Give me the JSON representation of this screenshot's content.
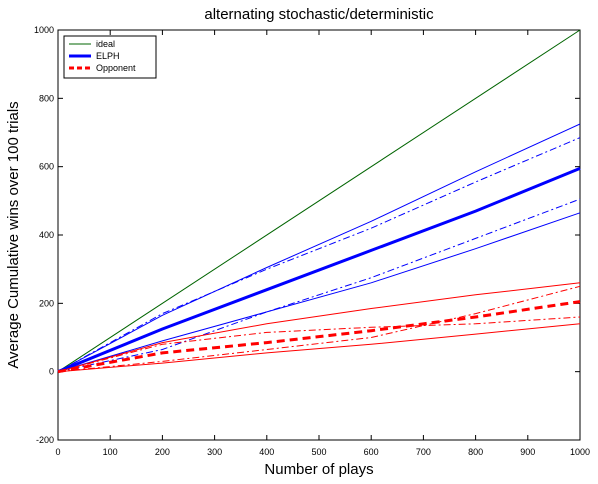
{
  "chart_data": {
    "type": "line",
    "title": "alternating stochastic/deterministic",
    "xlabel": "Number of plays",
    "ylabel": "Average Cumulative wins over 100 trials",
    "xlim": [
      0,
      1000
    ],
    "ylim": [
      -200,
      1000
    ],
    "xticks": [
      "0",
      "100",
      "200",
      "300",
      "400",
      "500",
      "600",
      "700",
      "800",
      "900",
      "1000"
    ],
    "yticks": [
      "-200",
      "0",
      "200",
      "400",
      "600",
      "800",
      "1000"
    ],
    "legend_position": "top-left",
    "grid": false,
    "colors": {
      "ideal": "#006400",
      "elph": "#0000ff",
      "opponent": "#ff0000"
    },
    "legend": [
      {
        "key": "ideal",
        "label": "ideal",
        "style": "solid-thin"
      },
      {
        "key": "elph",
        "label": "ELPH",
        "style": "solid-thick"
      },
      {
        "key": "opponent",
        "label": "Opponent",
        "style": "dashed-thick"
      }
    ],
    "series": [
      {
        "name": "ideal",
        "color_key": "ideal",
        "style": "solid-thin",
        "x": [
          0,
          1000
        ],
        "y": [
          0,
          1000
        ]
      },
      {
        "name": "ELPH",
        "color_key": "elph",
        "style": "solid-thick",
        "x": [
          0,
          200,
          400,
          600,
          800,
          1000
        ],
        "y": [
          0,
          125,
          240,
          355,
          470,
          595
        ]
      },
      {
        "color_key": "elph",
        "style": "solid-thin",
        "x": [
          0,
          200,
          400,
          600,
          800,
          1000
        ],
        "y": [
          0,
          165,
          305,
          440,
          585,
          725
        ]
      },
      {
        "color_key": "elph",
        "style": "solid-thin",
        "x": [
          0,
          200,
          400,
          600,
          800,
          1000
        ],
        "y": [
          0,
          90,
          175,
          260,
          360,
          465
        ]
      },
      {
        "color_key": "elph",
        "style": "dashdot-thin",
        "x": [
          0,
          200,
          400,
          600,
          800,
          1000
        ],
        "y": [
          0,
          170,
          300,
          420,
          555,
          685
        ]
      },
      {
        "color_key": "elph",
        "style": "dashdot-thin",
        "x": [
          0,
          200,
          400,
          600,
          800,
          1000
        ],
        "y": [
          0,
          65,
          175,
          275,
          390,
          505
        ]
      },
      {
        "name": "Opponent",
        "color_key": "opponent",
        "style": "dashed-thick",
        "x": [
          0,
          200,
          400,
          600,
          800,
          1000
        ],
        "y": [
          0,
          55,
          85,
          120,
          160,
          205
        ]
      },
      {
        "color_key": "opponent",
        "style": "solid-thin",
        "x": [
          0,
          200,
          400,
          600,
          800,
          1000
        ],
        "y": [
          0,
          85,
          140,
          185,
          225,
          260
        ]
      },
      {
        "color_key": "opponent",
        "style": "solid-thin",
        "x": [
          0,
          200,
          400,
          600,
          800,
          1000
        ],
        "y": [
          0,
          25,
          55,
          80,
          110,
          140
        ]
      },
      {
        "color_key": "opponent",
        "style": "dashdot-thin",
        "x": [
          0,
          200,
          400,
          600,
          800,
          1000
        ],
        "y": [
          0,
          80,
          115,
          130,
          140,
          160
        ]
      },
      {
        "color_key": "opponent",
        "style": "dashdot-thin",
        "x": [
          0,
          200,
          400,
          600,
          800,
          1000
        ],
        "y": [
          0,
          30,
          65,
          100,
          170,
          250
        ]
      }
    ]
  }
}
